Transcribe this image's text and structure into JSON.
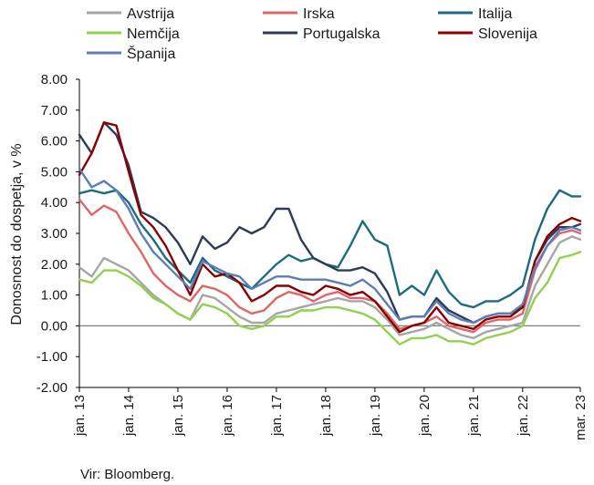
{
  "chart_data": {
    "type": "line",
    "title": "",
    "xlabel": "",
    "ylabel": "Donosnost do dospetja, v %",
    "ylim": [
      -2.0,
      8.0
    ],
    "yticks": [
      "8.00",
      "7.00",
      "6.00",
      "5.00",
      "4.00",
      "3.00",
      "2.00",
      "1.00",
      "0.00",
      "-1.00",
      "-2.00"
    ],
    "xticks": [
      "jan. 13",
      "jan. 14",
      "jan. 15",
      "jan. 16",
      "jan. 17",
      "jan. 18",
      "jan. 19",
      "jan. 20",
      "jan. 21",
      "jan. 22",
      "mar. 23"
    ],
    "xtick_positions": [
      2013.0,
      2014.0,
      2015.0,
      2016.0,
      2017.0,
      2018.0,
      2019.0,
      2020.0,
      2021.0,
      2022.0,
      2023.17
    ],
    "xlim": [
      2013.0,
      2023.17
    ],
    "grid": false,
    "legend_position": "top",
    "x": [
      2013.0,
      2013.25,
      2013.5,
      2013.75,
      2014.0,
      2014.25,
      2014.5,
      2014.75,
      2015.0,
      2015.25,
      2015.5,
      2015.75,
      2016.0,
      2016.25,
      2016.5,
      2016.75,
      2017.0,
      2017.25,
      2017.5,
      2017.75,
      2018.0,
      2018.25,
      2018.5,
      2018.75,
      2019.0,
      2019.25,
      2019.5,
      2019.75,
      2020.0,
      2020.25,
      2020.5,
      2020.75,
      2021.0,
      2021.25,
      2021.5,
      2021.75,
      2022.0,
      2022.25,
      2022.5,
      2022.75,
      2023.0,
      2023.17
    ],
    "series": [
      {
        "name": "Avstrija",
        "color": "#a6a6a6",
        "values": [
          1.9,
          1.6,
          2.2,
          2.0,
          1.8,
          1.4,
          1.0,
          0.7,
          0.4,
          0.2,
          1.0,
          0.9,
          0.6,
          0.3,
          0.1,
          0.1,
          0.4,
          0.5,
          0.6,
          0.7,
          0.8,
          0.9,
          0.8,
          0.8,
          0.6,
          0.2,
          -0.3,
          -0.2,
          -0.1,
          0.1,
          -0.1,
          -0.3,
          -0.4,
          -0.2,
          -0.1,
          0.0,
          0.1,
          1.3,
          2.0,
          2.7,
          2.9,
          2.8
        ]
      },
      {
        "name": "Irska",
        "color": "#e06666",
        "values": [
          4.1,
          3.6,
          3.9,
          3.7,
          3.0,
          2.4,
          1.7,
          1.3,
          1.0,
          0.8,
          1.3,
          1.2,
          1.0,
          0.6,
          0.4,
          0.5,
          0.9,
          1.1,
          1.0,
          0.8,
          1.0,
          1.1,
          0.9,
          0.9,
          0.8,
          0.4,
          -0.1,
          0.0,
          0.1,
          0.3,
          0.0,
          -0.1,
          -0.2,
          0.1,
          0.2,
          0.2,
          0.4,
          1.8,
          2.6,
          3.0,
          3.1,
          3.0
        ]
      },
      {
        "name": "Italija",
        "color": "#1d6b80",
        "values": [
          4.3,
          4.4,
          4.3,
          4.4,
          4.0,
          3.3,
          2.8,
          2.2,
          1.8,
          1.4,
          2.2,
          1.8,
          1.6,
          1.4,
          1.2,
          1.6,
          2.0,
          2.3,
          2.1,
          2.2,
          2.0,
          1.9,
          2.6,
          3.4,
          2.8,
          2.6,
          1.0,
          1.3,
          1.0,
          1.8,
          1.1,
          0.7,
          0.6,
          0.8,
          0.8,
          1.0,
          1.3,
          2.8,
          3.8,
          4.4,
          4.2,
          4.2
        ]
      },
      {
        "name": "Nemčija",
        "color": "#92d050",
        "values": [
          1.5,
          1.4,
          1.8,
          1.8,
          1.6,
          1.3,
          0.9,
          0.7,
          0.4,
          0.2,
          0.7,
          0.6,
          0.4,
          0.0,
          -0.1,
          0.0,
          0.3,
          0.3,
          0.5,
          0.5,
          0.6,
          0.6,
          0.5,
          0.4,
          0.2,
          -0.2,
          -0.6,
          -0.4,
          -0.4,
          -0.3,
          -0.5,
          -0.5,
          -0.6,
          -0.4,
          -0.3,
          -0.2,
          0.0,
          0.9,
          1.4,
          2.2,
          2.3,
          2.4
        ]
      },
      {
        "name": "Portugalska",
        "color": "#2e3a59",
        "values": [
          6.2,
          5.6,
          6.6,
          6.2,
          5.2,
          3.7,
          3.5,
          3.2,
          2.7,
          2.0,
          2.9,
          2.5,
          2.7,
          3.2,
          3.0,
          3.2,
          3.8,
          3.8,
          2.8,
          2.2,
          2.0,
          1.8,
          1.8,
          1.9,
          1.7,
          1.1,
          0.2,
          0.3,
          0.3,
          0.9,
          0.5,
          0.3,
          0.1,
          0.3,
          0.4,
          0.4,
          0.6,
          2.1,
          2.8,
          3.2,
          3.2,
          3.3
        ]
      },
      {
        "name": "Slovenija",
        "color": "#8b0000",
        "values": [
          4.9,
          5.6,
          6.6,
          6.5,
          5.0,
          3.6,
          3.2,
          2.6,
          1.8,
          1.0,
          2.0,
          1.6,
          1.7,
          1.4,
          0.8,
          1.0,
          1.3,
          1.3,
          1.1,
          1.0,
          1.3,
          1.2,
          1.0,
          1.1,
          0.8,
          0.3,
          -0.2,
          0.0,
          0.1,
          0.6,
          0.1,
          0.0,
          -0.1,
          0.2,
          0.3,
          0.3,
          0.6,
          2.1,
          2.9,
          3.3,
          3.5,
          3.4
        ]
      },
      {
        "name": "Španija",
        "color": "#5b7fb5",
        "values": [
          5.1,
          4.5,
          4.7,
          4.4,
          3.8,
          3.0,
          2.4,
          2.0,
          1.6,
          1.2,
          2.1,
          1.9,
          1.7,
          1.6,
          1.2,
          1.4,
          1.6,
          1.6,
          1.5,
          1.5,
          1.5,
          1.4,
          1.3,
          1.5,
          1.2,
          0.7,
          0.2,
          0.3,
          0.3,
          0.8,
          0.4,
          0.2,
          0.1,
          0.3,
          0.4,
          0.4,
          0.7,
          1.9,
          2.6,
          3.1,
          3.2,
          3.1
        ]
      }
    ]
  },
  "source_text": "Vir: Bloomberg."
}
